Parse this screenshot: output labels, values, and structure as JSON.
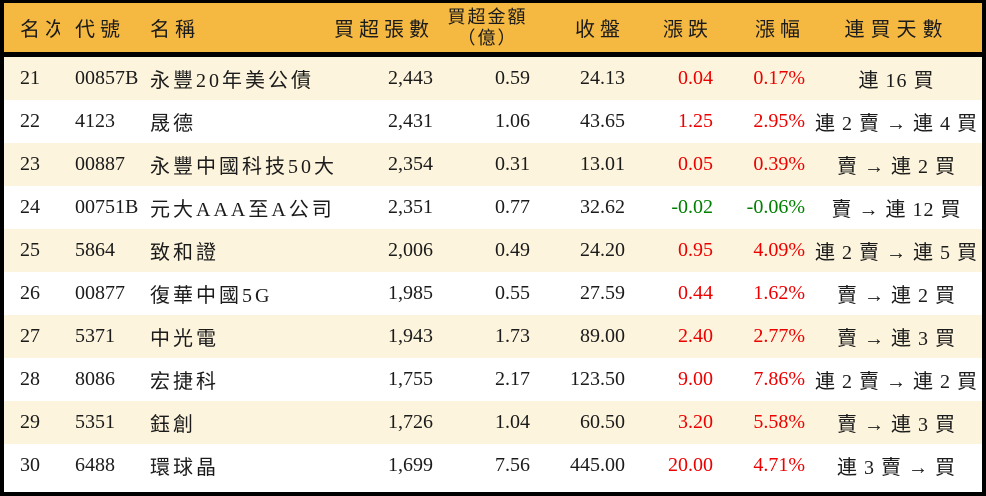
{
  "colors": {
    "header_bg": "#F5B841",
    "row_alt": "#FCF4DC",
    "row_bg": "#FFFFFF",
    "border": "#000000",
    "text": "#1B1B1B",
    "up": "#EC0000",
    "down": "#008000"
  },
  "chart_data": {
    "type": "table",
    "title": "",
    "columns": [
      {
        "key": "rank",
        "label": "名次"
      },
      {
        "key": "code",
        "label": "代號"
      },
      {
        "key": "name",
        "label": "名稱"
      },
      {
        "key": "volume",
        "label": "買超張數"
      },
      {
        "key": "amount",
        "label": "買超金額",
        "label2": "（億）"
      },
      {
        "key": "close",
        "label": "收盤"
      },
      {
        "key": "change",
        "label": "漲跌"
      },
      {
        "key": "pct",
        "label": "漲幅"
      },
      {
        "key": "streak",
        "label": "連買天數"
      }
    ],
    "rows": [
      {
        "rank": "21",
        "code": "00857B",
        "name": "永豐20年美公債",
        "volume": "2,443",
        "amount": "0.59",
        "close": "24.13",
        "change": "0.04",
        "pct": "0.17%",
        "dir": "up",
        "streak": "連 16 買"
      },
      {
        "rank": "22",
        "code": "4123",
        "name": "晟德",
        "volume": "2,431",
        "amount": "1.06",
        "close": "43.65",
        "change": "1.25",
        "pct": "2.95%",
        "dir": "up",
        "streak": "連 2 賣 → 連 4 買"
      },
      {
        "rank": "23",
        "code": "00887",
        "name": "永豐中國科技50大",
        "volume": "2,354",
        "amount": "0.31",
        "close": "13.01",
        "change": "0.05",
        "pct": "0.39%",
        "dir": "up",
        "streak": "賣 → 連 2 買"
      },
      {
        "rank": "24",
        "code": "00751B",
        "name": "元大AAA至A公司債",
        "volume": "2,351",
        "amount": "0.77",
        "close": "32.62",
        "change": "-0.02",
        "pct": "-0.06%",
        "dir": "down",
        "streak": "賣 → 連 12 買"
      },
      {
        "rank": "25",
        "code": "5864",
        "name": "致和證",
        "volume": "2,006",
        "amount": "0.49",
        "close": "24.20",
        "change": "0.95",
        "pct": "4.09%",
        "dir": "up",
        "streak": "連 2 賣 → 連 5 買"
      },
      {
        "rank": "26",
        "code": "00877",
        "name": "復華中國5G",
        "volume": "1,985",
        "amount": "0.55",
        "close": "27.59",
        "change": "0.44",
        "pct": "1.62%",
        "dir": "up",
        "streak": "賣 → 連 2 買"
      },
      {
        "rank": "27",
        "code": "5371",
        "name": "中光電",
        "volume": "1,943",
        "amount": "1.73",
        "close": "89.00",
        "change": "2.40",
        "pct": "2.77%",
        "dir": "up",
        "streak": "賣 → 連 3 買"
      },
      {
        "rank": "28",
        "code": "8086",
        "name": "宏捷科",
        "volume": "1,755",
        "amount": "2.17",
        "close": "123.50",
        "change": "9.00",
        "pct": "7.86%",
        "dir": "up",
        "streak": "連 2 賣 → 連 2 買"
      },
      {
        "rank": "29",
        "code": "5351",
        "name": "鈺創",
        "volume": "1,726",
        "amount": "1.04",
        "close": "60.50",
        "change": "3.20",
        "pct": "5.58%",
        "dir": "up",
        "streak": "賣 → 連 3 買"
      },
      {
        "rank": "30",
        "code": "6488",
        "name": "環球晶",
        "volume": "1,699",
        "amount": "7.56",
        "close": "445.00",
        "change": "20.00",
        "pct": "4.71%",
        "dir": "up",
        "streak": "連 3 賣 → 買"
      }
    ]
  }
}
